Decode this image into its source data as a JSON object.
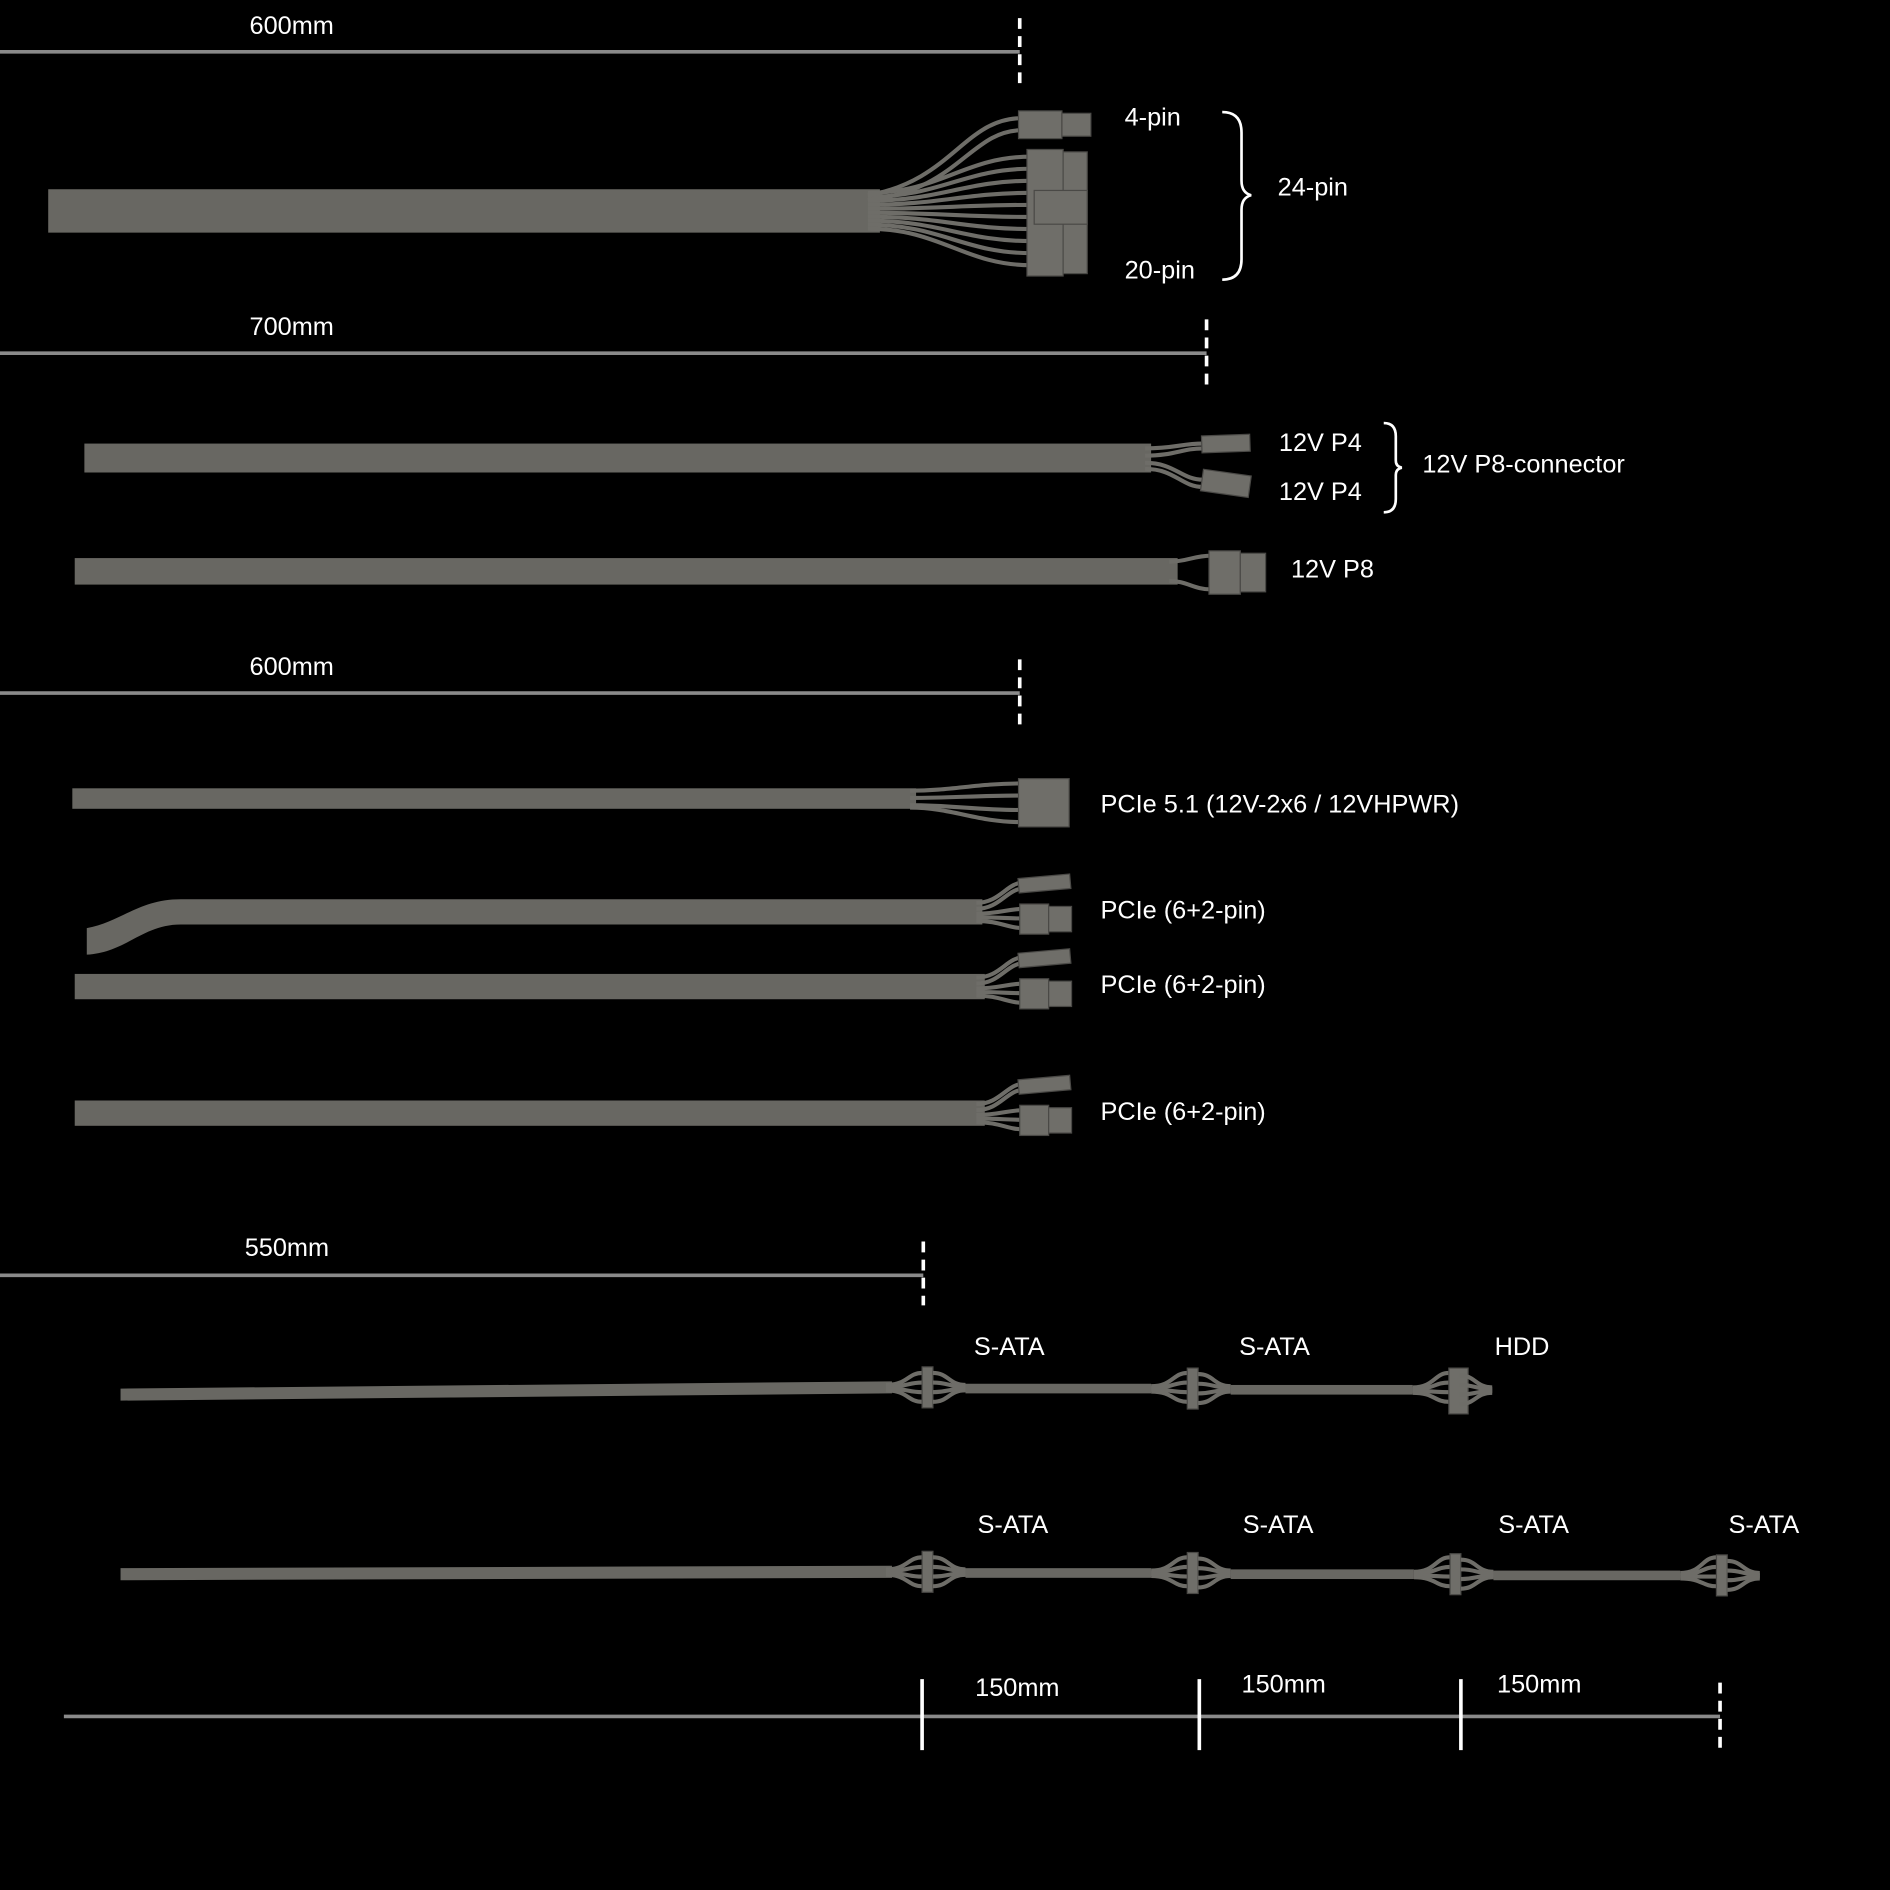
{
  "dimensions": {
    "atx": "600mm",
    "cpu": "700mm",
    "pcie": "600mm",
    "sata": "550mm",
    "sata_segments": [
      "150mm",
      "150mm",
      "150mm"
    ]
  },
  "atx_cable": {
    "label_4pin": "4-pin",
    "label_20pin": "20-pin",
    "label_24pin": "24-pin"
  },
  "cpu_cables": {
    "p4_a": "12V P4",
    "p4_b": "12V P4",
    "p8_connector": "12V P8-connector",
    "p8": "12V P8"
  },
  "pcie_cables": {
    "pcie5": "PCIe 5.1 (12V-2x6 / 12VHPWR)",
    "items": [
      "PCIe (6+2-pin)",
      "PCIe (6+2-pin)",
      "PCIe (6+2-pin)"
    ]
  },
  "sata_cable_1": {
    "labels": [
      "S-ATA",
      "S-ATA",
      "HDD"
    ]
  },
  "sata_cable_2": {
    "labels": [
      "S-ATA",
      "S-ATA",
      "S-ATA",
      "S-ATA"
    ]
  },
  "colors": {
    "background": "#000000",
    "cable": "#686762",
    "dimension_line": "#8a8a8a",
    "text": "#ffffff"
  }
}
